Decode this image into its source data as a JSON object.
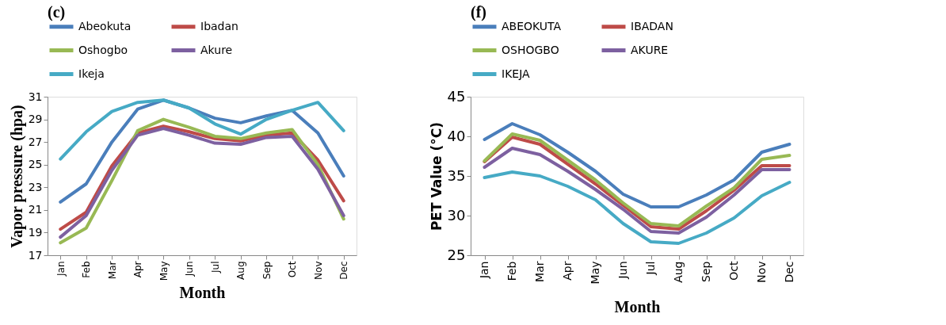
{
  "chart_data": [
    {
      "type": "line",
      "title": "(c)",
      "xlabel": "Month",
      "ylabel": "Vapor  pressure (hpa)",
      "categories": [
        "Jan",
        "Feb",
        "Mar",
        "Apr",
        "May",
        "Jun",
        "Jul",
        "Aug",
        "Sep",
        "Oct",
        "Nov",
        "Dec"
      ],
      "ylim": [
        17,
        31
      ],
      "yticks": [
        17,
        19,
        21,
        23,
        25,
        27,
        29,
        31
      ],
      "grid": false,
      "legend": "top",
      "marker": "none",
      "line_style": "solid",
      "series": [
        {
          "name": "Abeokuta",
          "color": "#4a7ebb",
          "values": [
            21.7,
            23.3,
            27.0,
            29.9,
            30.7,
            30.0,
            29.1,
            28.7,
            29.3,
            29.8,
            27.8,
            24.0
          ]
        },
        {
          "name": "Ibadan",
          "color": "#be4b48",
          "values": [
            19.3,
            20.8,
            24.9,
            27.8,
            28.4,
            27.9,
            27.3,
            27.1,
            27.6,
            27.8,
            25.4,
            21.8
          ]
        },
        {
          "name": "Oshogbo",
          "color": "#98b954",
          "values": [
            18.1,
            19.4,
            23.6,
            28.0,
            29.0,
            28.3,
            27.5,
            27.3,
            27.8,
            28.1,
            25.0,
            20.2
          ]
        },
        {
          "name": "Akure",
          "color": "#7d60a0",
          "values": [
            18.6,
            20.5,
            24.5,
            27.6,
            28.2,
            27.6,
            26.9,
            26.8,
            27.4,
            27.5,
            24.6,
            20.5
          ]
        },
        {
          "name": "Ikeja",
          "color": "#46aac5",
          "values": [
            25.5,
            27.9,
            29.7,
            30.5,
            30.7,
            30.0,
            28.6,
            27.7,
            29.0,
            29.8,
            30.5,
            28.0
          ]
        }
      ]
    },
    {
      "type": "line",
      "title": "(f)",
      "xlabel": "Month",
      "ylabel": "PET  Value (°C)",
      "categories": [
        "Jan",
        "Feb",
        "Mar",
        "Apr",
        "May",
        "Jun",
        "Jul",
        "Aug",
        "Sep",
        "Oct",
        "Nov",
        "Dec"
      ],
      "ylim": [
        25,
        45
      ],
      "yticks": [
        25,
        30,
        35,
        40,
        45
      ],
      "grid": false,
      "legend": "top",
      "marker": "none",
      "line_style": "solid",
      "series": [
        {
          "name": "ABEOKUTA",
          "color": "#4a7ebb",
          "values": [
            39.6,
            41.6,
            40.2,
            38.0,
            35.6,
            32.7,
            31.1,
            31.1,
            32.6,
            34.5,
            38.0,
            39.0
          ]
        },
        {
          "name": "IBADAN",
          "color": "#be4b48",
          "values": [
            36.8,
            39.9,
            39.0,
            36.5,
            34.0,
            31.3,
            28.6,
            28.3,
            30.6,
            33.2,
            36.3,
            36.3
          ]
        },
        {
          "name": "OSHOGBO",
          "color": "#98b954",
          "values": [
            36.9,
            40.3,
            39.5,
            37.0,
            34.5,
            31.6,
            29.0,
            28.7,
            31.2,
            33.5,
            37.1,
            37.6
          ]
        },
        {
          "name": "AKURE",
          "color": "#7d60a0",
          "values": [
            36.1,
            38.5,
            37.7,
            35.6,
            33.3,
            30.8,
            28.0,
            27.8,
            29.8,
            32.6,
            35.8,
            35.8
          ]
        },
        {
          "name": "IKEJA",
          "color": "#46aac5",
          "values": [
            34.8,
            35.5,
            35.0,
            33.7,
            32.0,
            29.0,
            26.7,
            26.5,
            27.8,
            29.7,
            32.5,
            34.2
          ]
        }
      ]
    }
  ]
}
